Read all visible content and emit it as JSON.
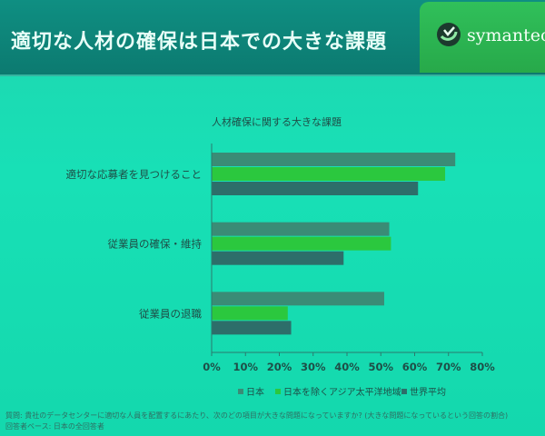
{
  "header": {
    "title": "適切な人材の確保は日本での大きな課題",
    "logo_text": "symantec."
  },
  "colors": {
    "japan": "#3a8c76",
    "asia_pacific_ex_japan": "#2bc83e",
    "world": "#2d6e6a",
    "axis": "#2b7a6e",
    "text": "#1e4e47"
  },
  "chart_data": {
    "type": "bar",
    "orientation": "horizontal",
    "title": "人材確保に関する大きな課題",
    "categories": [
      "適切な応募者を見つけること",
      "従業員の確保・維持",
      "従業員の退職"
    ],
    "series": [
      {
        "name": "日本",
        "values": [
          72,
          52.5,
          51
        ]
      },
      {
        "name": "日本を除くアジア太平洋地域",
        "values": [
          69,
          53,
          22.5
        ]
      },
      {
        "name": "世界平均",
        "values": [
          61,
          39,
          23.5
        ]
      }
    ],
    "xlim": [
      0,
      80
    ],
    "ticks": [
      "0%",
      "10%",
      "20%",
      "30%",
      "40%",
      "50%",
      "60%",
      "70%",
      "80%"
    ],
    "legend_position": "bottom",
    "grid": false
  },
  "footnotes": {
    "question": "質問: 貴社のデータセンターに適切な人員を配置するにあたり、次のどの項目が大きな問題になっていますか? (大きな問題になっているという回答の割合)",
    "base": "回答者ベース: 日本の全回答者"
  }
}
